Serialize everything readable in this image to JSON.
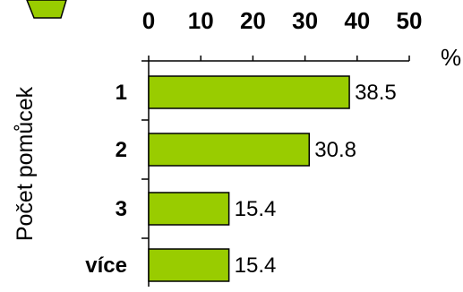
{
  "chart_data": {
    "type": "bar",
    "orientation": "horizontal",
    "title": "",
    "xlabel": "",
    "ylabel": "Počet pomůcek",
    "unit": "%",
    "categories": [
      "1",
      "2",
      "3",
      "více"
    ],
    "values": [
      38.5,
      30.8,
      15.4,
      15.4
    ],
    "value_labels": [
      "38.5",
      "30.8",
      "15.4",
      "15.4"
    ],
    "xlim": [
      0,
      50
    ],
    "x_ticks": [
      "0",
      "10",
      "20",
      "30",
      "40",
      "50"
    ],
    "x_axis_position": "top",
    "grid": false,
    "bar_color": "#99cc00",
    "bar_edge_color": "#000000",
    "arrow_color": "#99cc00"
  }
}
